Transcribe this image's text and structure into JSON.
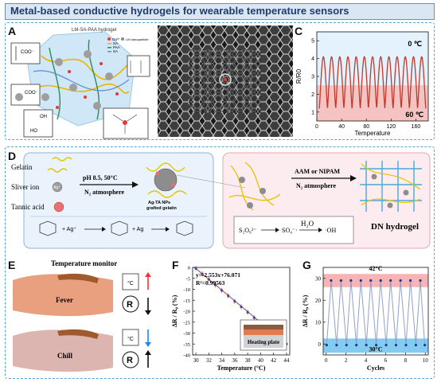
{
  "title": "Metal-based conductive hydrogels for wearable temperature sensors",
  "panels": {
    "A": {
      "letter": "A",
      "hydrogel_label": "LM-SA-PAA hydrogel",
      "legend": [
        "Ga³⁺",
        "LM nanoparticle",
        "SA",
        "PAA",
        "SA"
      ],
      "carboxylate": "COO⁻",
      "ho_label": "HO",
      "oh_label": "OH"
    },
    "B": {
      "letter": "B"
    },
    "C": {
      "letter": "C",
      "ylabel": "R/R0",
      "xlabel": "Temperature",
      "cold_label": "0 ℃",
      "hot_label": "60 ℃",
      "chart_data": {
        "type": "line",
        "x_ticks": [
          0,
          40,
          80,
          120,
          160
        ],
        "y_ticks": [
          1,
          2,
          3,
          4,
          5
        ],
        "xlim": [
          0,
          180
        ],
        "ylim": [
          0.5,
          5.5
        ],
        "cycles": 13,
        "y_min": 1.2,
        "y_max": 4.1
      }
    },
    "D": {
      "letter": "D",
      "gelatin": "Gelatin",
      "silver_ion": "Sliver ion",
      "silver_symbol": "Ag⁺",
      "tannic_acid": "Tannic acid",
      "condition_top": "pH 8.5, 50°C",
      "condition_bottom": "N₂ atmosphere",
      "np_label": "Ag-TA NPs",
      "np_label2": "grafted gelatin",
      "reaction_ag": "+ Ag⁺",
      "reaction_ag2": "+ Ag",
      "monomer_top": "AAM or NIPAM",
      "monomer_bottom": "N₂ atmosphere",
      "dn_label": "DN hydrogel",
      "persulfate": "S₂O₈²⁻",
      "sulfate": "SO₄⁻·",
      "water": "H₂O",
      "hydroxyl": "·OH"
    },
    "E": {
      "letter": "E",
      "monitor_title": "Temperature monitor",
      "fever": "Fever",
      "chill": "Chill",
      "r_symbol": "R",
      "unit": "°C"
    },
    "F": {
      "letter": "F",
      "ylabel": "ΔR / R₀ (%)",
      "xlabel": "Temperature (°C)",
      "equation": "y=-2.553x+76.071",
      "r2": "R²=0.99563",
      "inset": "Heating plate",
      "chart_data": {
        "type": "scatter",
        "x": [
          30,
          31,
          32,
          33,
          34,
          35,
          36,
          37,
          38,
          39,
          40,
          41,
          42,
          43,
          44
        ],
        "y": [
          -0.5,
          -3,
          -5.5,
          -8,
          -10.5,
          -13,
          -15.5,
          -18,
          -20.5,
          -23,
          -25.5,
          -28,
          -30.5,
          -32.5,
          -35
        ],
        "x_ticks": [
          30,
          32,
          34,
          36,
          38,
          40,
          42,
          44
        ],
        "y_ticks": [
          0,
          -5,
          -10,
          -15,
          -20,
          -25,
          -30,
          -35,
          -40
        ],
        "xlim": [
          29.5,
          44.5
        ],
        "ylim": [
          -40,
          0
        ],
        "fit": {
          "slope": -2.553,
          "intercept": 76.071
        }
      }
    },
    "G": {
      "letter": "G",
      "ylabel": "ΔR / R₀ (%)",
      "xlabel": "Cycles",
      "hot_label": "42°C",
      "cold_label": "30°C",
      "chart_data": {
        "type": "line",
        "x_ticks": [
          0,
          2,
          4,
          6,
          8,
          10
        ],
        "y_ticks": [
          0,
          10,
          20,
          30
        ],
        "xlim": [
          -0.3,
          10.3
        ],
        "ylim": [
          -5,
          35
        ],
        "cycles": 10,
        "y_high": 29,
        "y_low": -0.5
      }
    }
  },
  "colors": {
    "accent": "#4aa8d8",
    "curve": "#c0392b",
    "hot_band": "#f4a7a7",
    "cold_band": "#6cc3ee",
    "line_g": "#8fa0c8"
  }
}
